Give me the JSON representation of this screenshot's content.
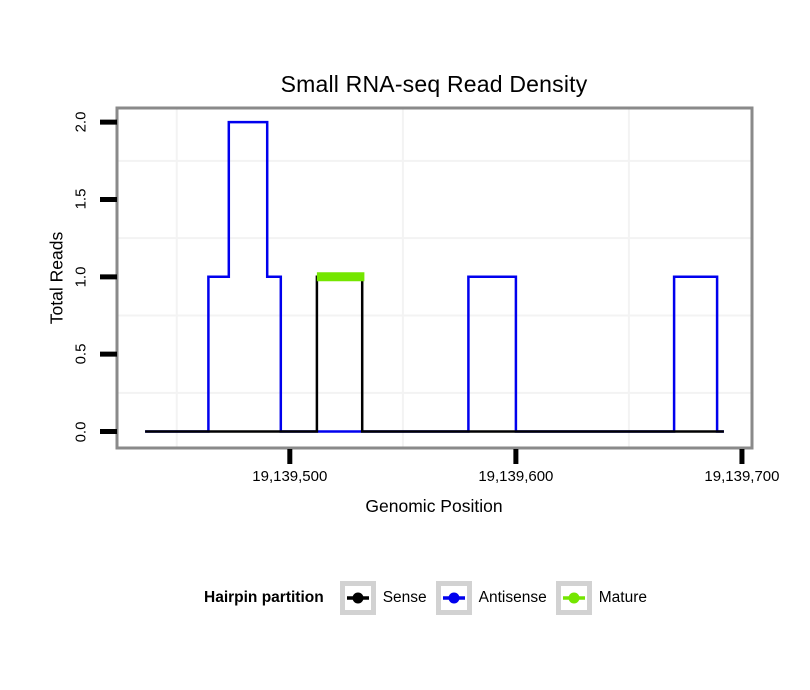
{
  "chart_data": {
    "type": "line",
    "subtype": "step-density",
    "title": "Small RNA-seq Read Density",
    "xlabel": "Genomic Position",
    "ylabel": "Total Reads",
    "xlim": [
      19139424,
      19139704
    ],
    "ylim": [
      -0.1,
      2.085
    ],
    "grid": "minor-only",
    "legend_position": "bottom",
    "xticks": [
      {
        "value": 19139500,
        "label": "19,139,500"
      },
      {
        "value": 19139600,
        "label": "19,139,600"
      },
      {
        "value": 19139700,
        "label": "19,139,700"
      }
    ],
    "yticks": [
      {
        "value": 0.0,
        "label": "0.0"
      },
      {
        "value": 0.5,
        "label": "0.5"
      },
      {
        "value": 1.0,
        "label": "1.0"
      },
      {
        "value": 1.5,
        "label": "1.5"
      },
      {
        "value": 2.0,
        "label": "2.0"
      }
    ],
    "minor_grid_x": [
      19139450,
      19139550,
      19139650
    ],
    "minor_grid_y": [
      0.25,
      0.75,
      1.25,
      1.75
    ],
    "series": [
      {
        "name": "Antisense",
        "color": "#0000EE",
        "stroke_width": 2.5,
        "points": [
          [
            19139436,
            0
          ],
          [
            19139464,
            0
          ],
          [
            19139464,
            1
          ],
          [
            19139473,
            1
          ],
          [
            19139473,
            2
          ],
          [
            19139490,
            2
          ],
          [
            19139490,
            1
          ],
          [
            19139496,
            1
          ],
          [
            19139496,
            0
          ],
          [
            19139579,
            0
          ],
          [
            19139579,
            1
          ],
          [
            19139600,
            1
          ],
          [
            19139600,
            0
          ],
          [
            19139670,
            0
          ],
          [
            19139670,
            1
          ],
          [
            19139689,
            1
          ],
          [
            19139689,
            0
          ],
          [
            19139692,
            0
          ]
        ]
      },
      {
        "name": "Sense",
        "color": "#000000",
        "stroke_width": 2.5,
        "points": [
          [
            19139436,
            0
          ],
          [
            19139512,
            0
          ],
          [
            19139512,
            1
          ],
          [
            19139532,
            1
          ],
          [
            19139532,
            0
          ],
          [
            19139692,
            0
          ]
        ]
      },
      {
        "name": "Mature",
        "color": "#74E600",
        "stroke_width": 9,
        "points": [
          [
            19139512,
            1
          ],
          [
            19139533,
            1
          ]
        ]
      }
    ],
    "colors": {
      "panel_border": "#8A8A8A",
      "minor_grid": "#F3F3F3",
      "tick": "#000000",
      "legend_key_border": "#D2D2D2"
    }
  },
  "legend": {
    "title": "Hairpin partition",
    "items": [
      {
        "label": "Sense",
        "color": "#000000"
      },
      {
        "label": "Antisense",
        "color": "#0000EE"
      },
      {
        "label": "Mature",
        "color": "#74E600"
      }
    ]
  }
}
